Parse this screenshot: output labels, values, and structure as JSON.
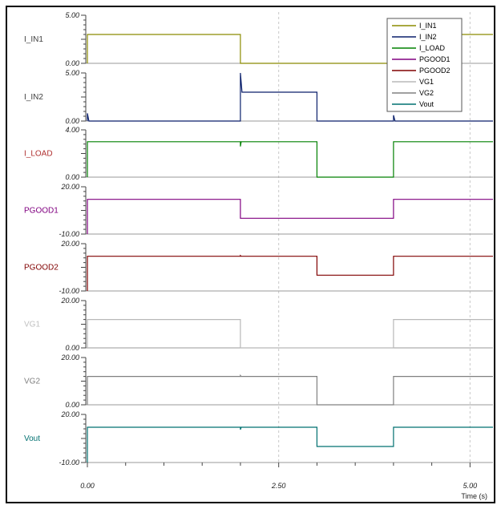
{
  "chart_data": {
    "type": "line",
    "x_unit": "Time (s)",
    "xlim": [
      0,
      5.3
    ],
    "x_ticks": [
      "0.00",
      "2.50",
      "5.00"
    ],
    "x_axis_title": "Time (s)",
    "grid": "vertical dashed",
    "legend_position": "top-right",
    "channels": [
      {
        "name": "I_IN1",
        "color": "#8b8b00",
        "ylim": [
          0,
          5
        ],
        "y_ticks": [
          "5.00",
          "0.00"
        ],
        "label_color": "#404040",
        "points": [
          [
            0,
            0
          ],
          [
            0,
            3
          ],
          [
            2,
            3
          ],
          [
            2,
            0
          ],
          [
            3,
            0
          ],
          [
            3,
            0
          ],
          [
            4,
            0
          ],
          [
            4,
            3
          ],
          [
            5.3,
            3
          ]
        ]
      },
      {
        "name": "I_IN2",
        "color": "#0a1f6b",
        "ylim": [
          0,
          5
        ],
        "y_ticks": [
          "5.00",
          "0.00"
        ],
        "label_color": "#404040",
        "points": [
          [
            0,
            0
          ],
          [
            0,
            0.8
          ],
          [
            0.02,
            0
          ],
          [
            2,
            0
          ],
          [
            2,
            5
          ],
          [
            2.02,
            3
          ],
          [
            3,
            3
          ],
          [
            3,
            0
          ],
          [
            4,
            0
          ],
          [
            4,
            0.6
          ],
          [
            4.02,
            0
          ],
          [
            5.3,
            0
          ]
        ]
      },
      {
        "name": "I_LOAD",
        "color": "#008000",
        "ylim": [
          0,
          4
        ],
        "y_ticks": [
          "4.00",
          "0.00"
        ],
        "label_color": "#b03030",
        "points": [
          [
            0,
            0
          ],
          [
            0,
            3
          ],
          [
            2,
            3
          ],
          [
            2,
            2.6
          ],
          [
            2.01,
            3
          ],
          [
            3,
            3
          ],
          [
            3,
            0
          ],
          [
            4,
            0
          ],
          [
            4,
            3
          ],
          [
            5.3,
            3
          ]
        ]
      },
      {
        "name": "PGOOD1",
        "color": "#800080",
        "ylim": [
          -10,
          20
        ],
        "y_ticks": [
          "20.00",
          "-10.00"
        ],
        "label_color": "#800080",
        "points": [
          [
            0,
            -10
          ],
          [
            0,
            12
          ],
          [
            2,
            12
          ],
          [
            2,
            0
          ],
          [
            4,
            0
          ],
          [
            4,
            12
          ],
          [
            5.3,
            12
          ]
        ]
      },
      {
        "name": "PGOOD2",
        "color": "#800000",
        "ylim": [
          -10,
          20
        ],
        "y_ticks": [
          "20.00",
          "-10.00"
        ],
        "label_color": "#800000",
        "points": [
          [
            0,
            -10
          ],
          [
            0,
            12
          ],
          [
            2,
            12
          ],
          [
            2,
            12.5
          ],
          [
            2.01,
            12
          ],
          [
            3,
            12
          ],
          [
            3,
            0
          ],
          [
            4,
            0
          ],
          [
            4,
            12
          ],
          [
            5.3,
            12
          ]
        ]
      },
      {
        "name": "VG1",
        "color": "#b8b8b8",
        "ylim": [
          0,
          20
        ],
        "y_ticks": [
          "20.00",
          "0.00"
        ],
        "label_color": "#c0c0c0",
        "points": [
          [
            0,
            0
          ],
          [
            0,
            12
          ],
          [
            2,
            12
          ],
          [
            2,
            0
          ],
          [
            4,
            0
          ],
          [
            4,
            12
          ],
          [
            5.3,
            12
          ]
        ]
      },
      {
        "name": "VG2",
        "color": "#808080",
        "ylim": [
          0,
          20
        ],
        "y_ticks": [
          "20.00",
          "0.00"
        ],
        "label_color": "#808080",
        "points": [
          [
            0,
            0
          ],
          [
            0,
            12
          ],
          [
            2,
            12
          ],
          [
            2,
            12.4
          ],
          [
            2.01,
            12
          ],
          [
            3,
            12
          ],
          [
            3,
            0
          ],
          [
            4,
            0
          ],
          [
            4,
            12
          ],
          [
            5.3,
            12
          ]
        ]
      },
      {
        "name": "Vout",
        "color": "#007070",
        "ylim": [
          -10,
          20
        ],
        "y_ticks": [
          "20.00",
          "-10.00"
        ],
        "label_color": "#007070",
        "points": [
          [
            0,
            -10
          ],
          [
            0,
            12
          ],
          [
            2,
            12
          ],
          [
            2,
            10.5
          ],
          [
            2.01,
            12
          ],
          [
            3,
            12
          ],
          [
            3,
            0
          ],
          [
            4,
            0
          ],
          [
            4,
            12
          ],
          [
            5.3,
            12
          ]
        ]
      }
    ],
    "legend": [
      "I_IN1",
      "I_IN2",
      "I_LOAD",
      "PGOOD1",
      "PGOOD2",
      "VG1",
      "VG2",
      "Vout"
    ]
  }
}
